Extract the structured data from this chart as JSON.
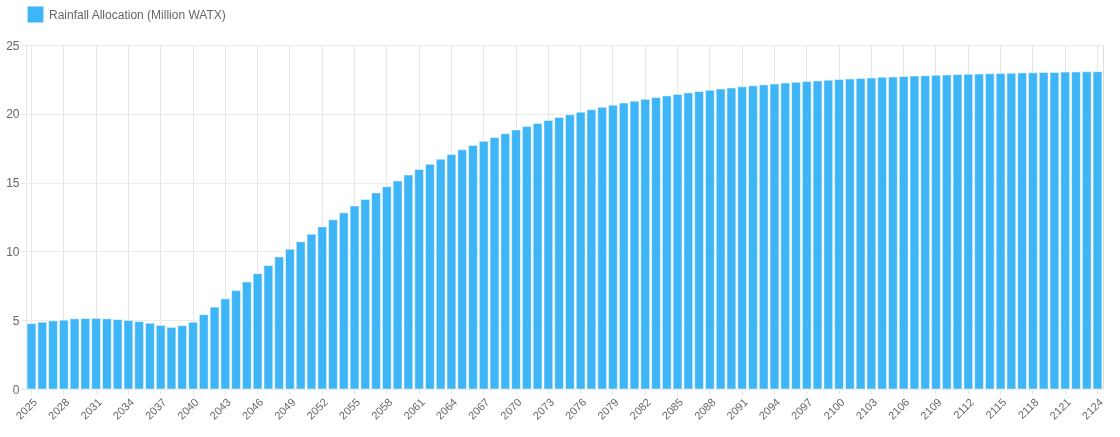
{
  "chart_data": {
    "type": "bar",
    "categories": [
      "2025",
      null,
      null,
      "2028",
      null,
      null,
      "2031",
      null,
      null,
      "2034",
      null,
      null,
      "2037",
      null,
      null,
      "2040",
      null,
      null,
      "2043",
      null,
      null,
      "2046",
      null,
      null,
      "2049",
      null,
      null,
      "2052",
      null,
      null,
      "2055",
      null,
      null,
      "2058",
      null,
      null,
      "2061",
      null,
      null,
      "2064",
      null,
      null,
      "2067",
      null,
      null,
      "2070",
      null,
      null,
      "2073",
      null,
      null,
      "2076",
      null,
      null,
      "2079",
      null,
      null,
      "2082",
      null,
      null,
      "2085",
      null,
      null,
      "2088",
      null,
      null,
      "2091",
      null,
      null,
      "2094",
      null,
      null,
      "2097",
      null,
      null,
      "2100",
      null,
      null,
      "2103",
      null,
      null,
      "2106",
      null,
      null,
      "2109",
      null,
      null,
      "2112",
      null,
      null,
      "2115",
      null,
      null,
      "2118",
      null,
      null,
      "2121",
      null,
      null,
      "2124"
    ],
    "series": [
      {
        "name": "Rainfall Allocation (Million WATX)",
        "color": "#3db5f7",
        "values": [
          4.75,
          4.85,
          4.95,
          5.0,
          5.1,
          5.12,
          5.13,
          5.1,
          5.05,
          4.98,
          4.9,
          4.78,
          4.62,
          4.48,
          4.6,
          4.85,
          5.4,
          5.95,
          6.55,
          7.15,
          7.78,
          8.38,
          8.98,
          9.6,
          10.15,
          10.7,
          11.25,
          11.78,
          12.3,
          12.8,
          13.3,
          13.78,
          14.25,
          14.7,
          15.12,
          15.55,
          15.95,
          16.33,
          16.7,
          17.05,
          17.38,
          17.7,
          18.0,
          18.28,
          18.55,
          18.82,
          19.07,
          19.3,
          19.52,
          19.73,
          19.93,
          20.12,
          20.3,
          20.47,
          20.63,
          20.78,
          20.92,
          21.05,
          21.18,
          21.3,
          21.41,
          21.52,
          21.62,
          21.71,
          21.8,
          21.88,
          21.96,
          22.03,
          22.1,
          22.17,
          22.23,
          22.29,
          22.34,
          22.39,
          22.44,
          22.49,
          22.53,
          22.57,
          22.61,
          22.65,
          22.68,
          22.71,
          22.74,
          22.77,
          22.8,
          22.82,
          22.85,
          22.87,
          22.89,
          22.91,
          22.93,
          22.95,
          22.97,
          22.98,
          23.0,
          23.01,
          23.03,
          23.04,
          23.05,
          23.06
        ]
      }
    ],
    "ylim": [
      0,
      25
    ],
    "yticks": [
      0,
      5,
      10,
      15,
      20,
      25
    ],
    "grid": true,
    "legend": "top"
  }
}
